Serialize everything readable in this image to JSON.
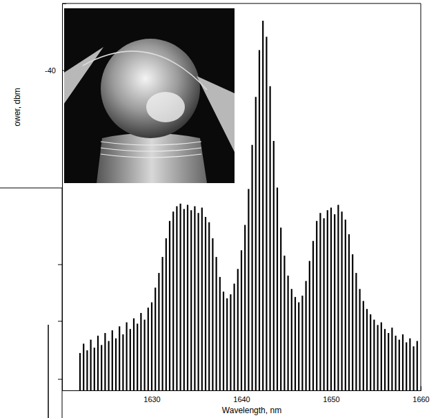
{
  "chart_data": {
    "type": "stem",
    "x_label": "Wavelength, nm",
    "y_label": "ower, dbm",
    "color": "#000000",
    "xlim": [
      1620,
      1660
    ],
    "xticks": [
      1630,
      1640,
      1650,
      1660
    ],
    "ylim": [
      -64,
      -35
    ],
    "yticks": [
      -40
    ],
    "grid": false,
    "x": [
      1622.0,
      1622.4,
      1622.8,
      1623.2,
      1623.6,
      1624.0,
      1624.4,
      1624.8,
      1625.2,
      1625.6,
      1626.0,
      1626.4,
      1626.8,
      1627.2,
      1627.6,
      1628.0,
      1628.4,
      1628.8,
      1629.2,
      1629.6,
      1630.0,
      1630.4,
      1630.8,
      1631.2,
      1631.6,
      1632.0,
      1632.4,
      1632.8,
      1633.2,
      1633.6,
      1634.0,
      1634.4,
      1634.8,
      1635.2,
      1635.6,
      1636.0,
      1636.4,
      1636.8,
      1637.2,
      1637.6,
      1638.0,
      1638.4,
      1638.8,
      1639.2,
      1639.6,
      1640.0,
      1640.4,
      1640.8,
      1641.2,
      1641.6,
      1642.0,
      1642.4,
      1642.8,
      1643.2,
      1643.6,
      1644.0,
      1644.4,
      1644.8,
      1645.2,
      1645.6,
      1646.0,
      1646.4,
      1646.8,
      1647.2,
      1647.6,
      1648.0,
      1648.4,
      1648.8,
      1649.2,
      1649.6,
      1650.0,
      1650.4,
      1650.8,
      1651.2,
      1651.6,
      1652.0,
      1652.4,
      1652.8,
      1653.2,
      1653.6,
      1654.0,
      1654.4,
      1654.8,
      1655.2,
      1655.6,
      1656.0,
      1656.4,
      1656.8,
      1657.2,
      1657.6,
      1658.0,
      1658.4,
      1658.8,
      1659.2,
      1659.6
    ],
    "values": [
      -61.2,
      -60.5,
      -61.0,
      -60.2,
      -60.8,
      -59.9,
      -60.6,
      -59.7,
      -60.3,
      -59.5,
      -60.1,
      -59.2,
      -59.8,
      -58.9,
      -59.4,
      -58.6,
      -59.0,
      -58.2,
      -58.7,
      -57.8,
      -57.4,
      -56.3,
      -55.2,
      -54.0,
      -52.6,
      -51.3,
      -50.6,
      -50.2,
      -50.0,
      -50.4,
      -50.1,
      -50.5,
      -50.2,
      -50.7,
      -50.3,
      -51.0,
      -51.4,
      -52.6,
      -54.0,
      -55.5,
      -56.6,
      -57.1,
      -56.8,
      -56.0,
      -54.9,
      -53.5,
      -51.6,
      -48.9,
      -45.6,
      -42.0,
      -38.5,
      -36.3,
      -37.5,
      -41.2,
      -45.3,
      -48.8,
      -51.8,
      -53.9,
      -55.4,
      -56.4,
      -57.0,
      -57.4,
      -56.9,
      -55.8,
      -54.3,
      -52.8,
      -51.3,
      -50.7,
      -51.1,
      -50.5,
      -50.3,
      -50.8,
      -50.1,
      -50.6,
      -51.2,
      -52.3,
      -53.8,
      -55.2,
      -56.4,
      -57.3,
      -57.9,
      -58.3,
      -58.7,
      -59.1,
      -58.9,
      -59.4,
      -59.7,
      -59.3,
      -59.9,
      -60.2,
      -59.8,
      -60.4,
      -60.1,
      -60.7,
      -60.3
    ]
  }
}
